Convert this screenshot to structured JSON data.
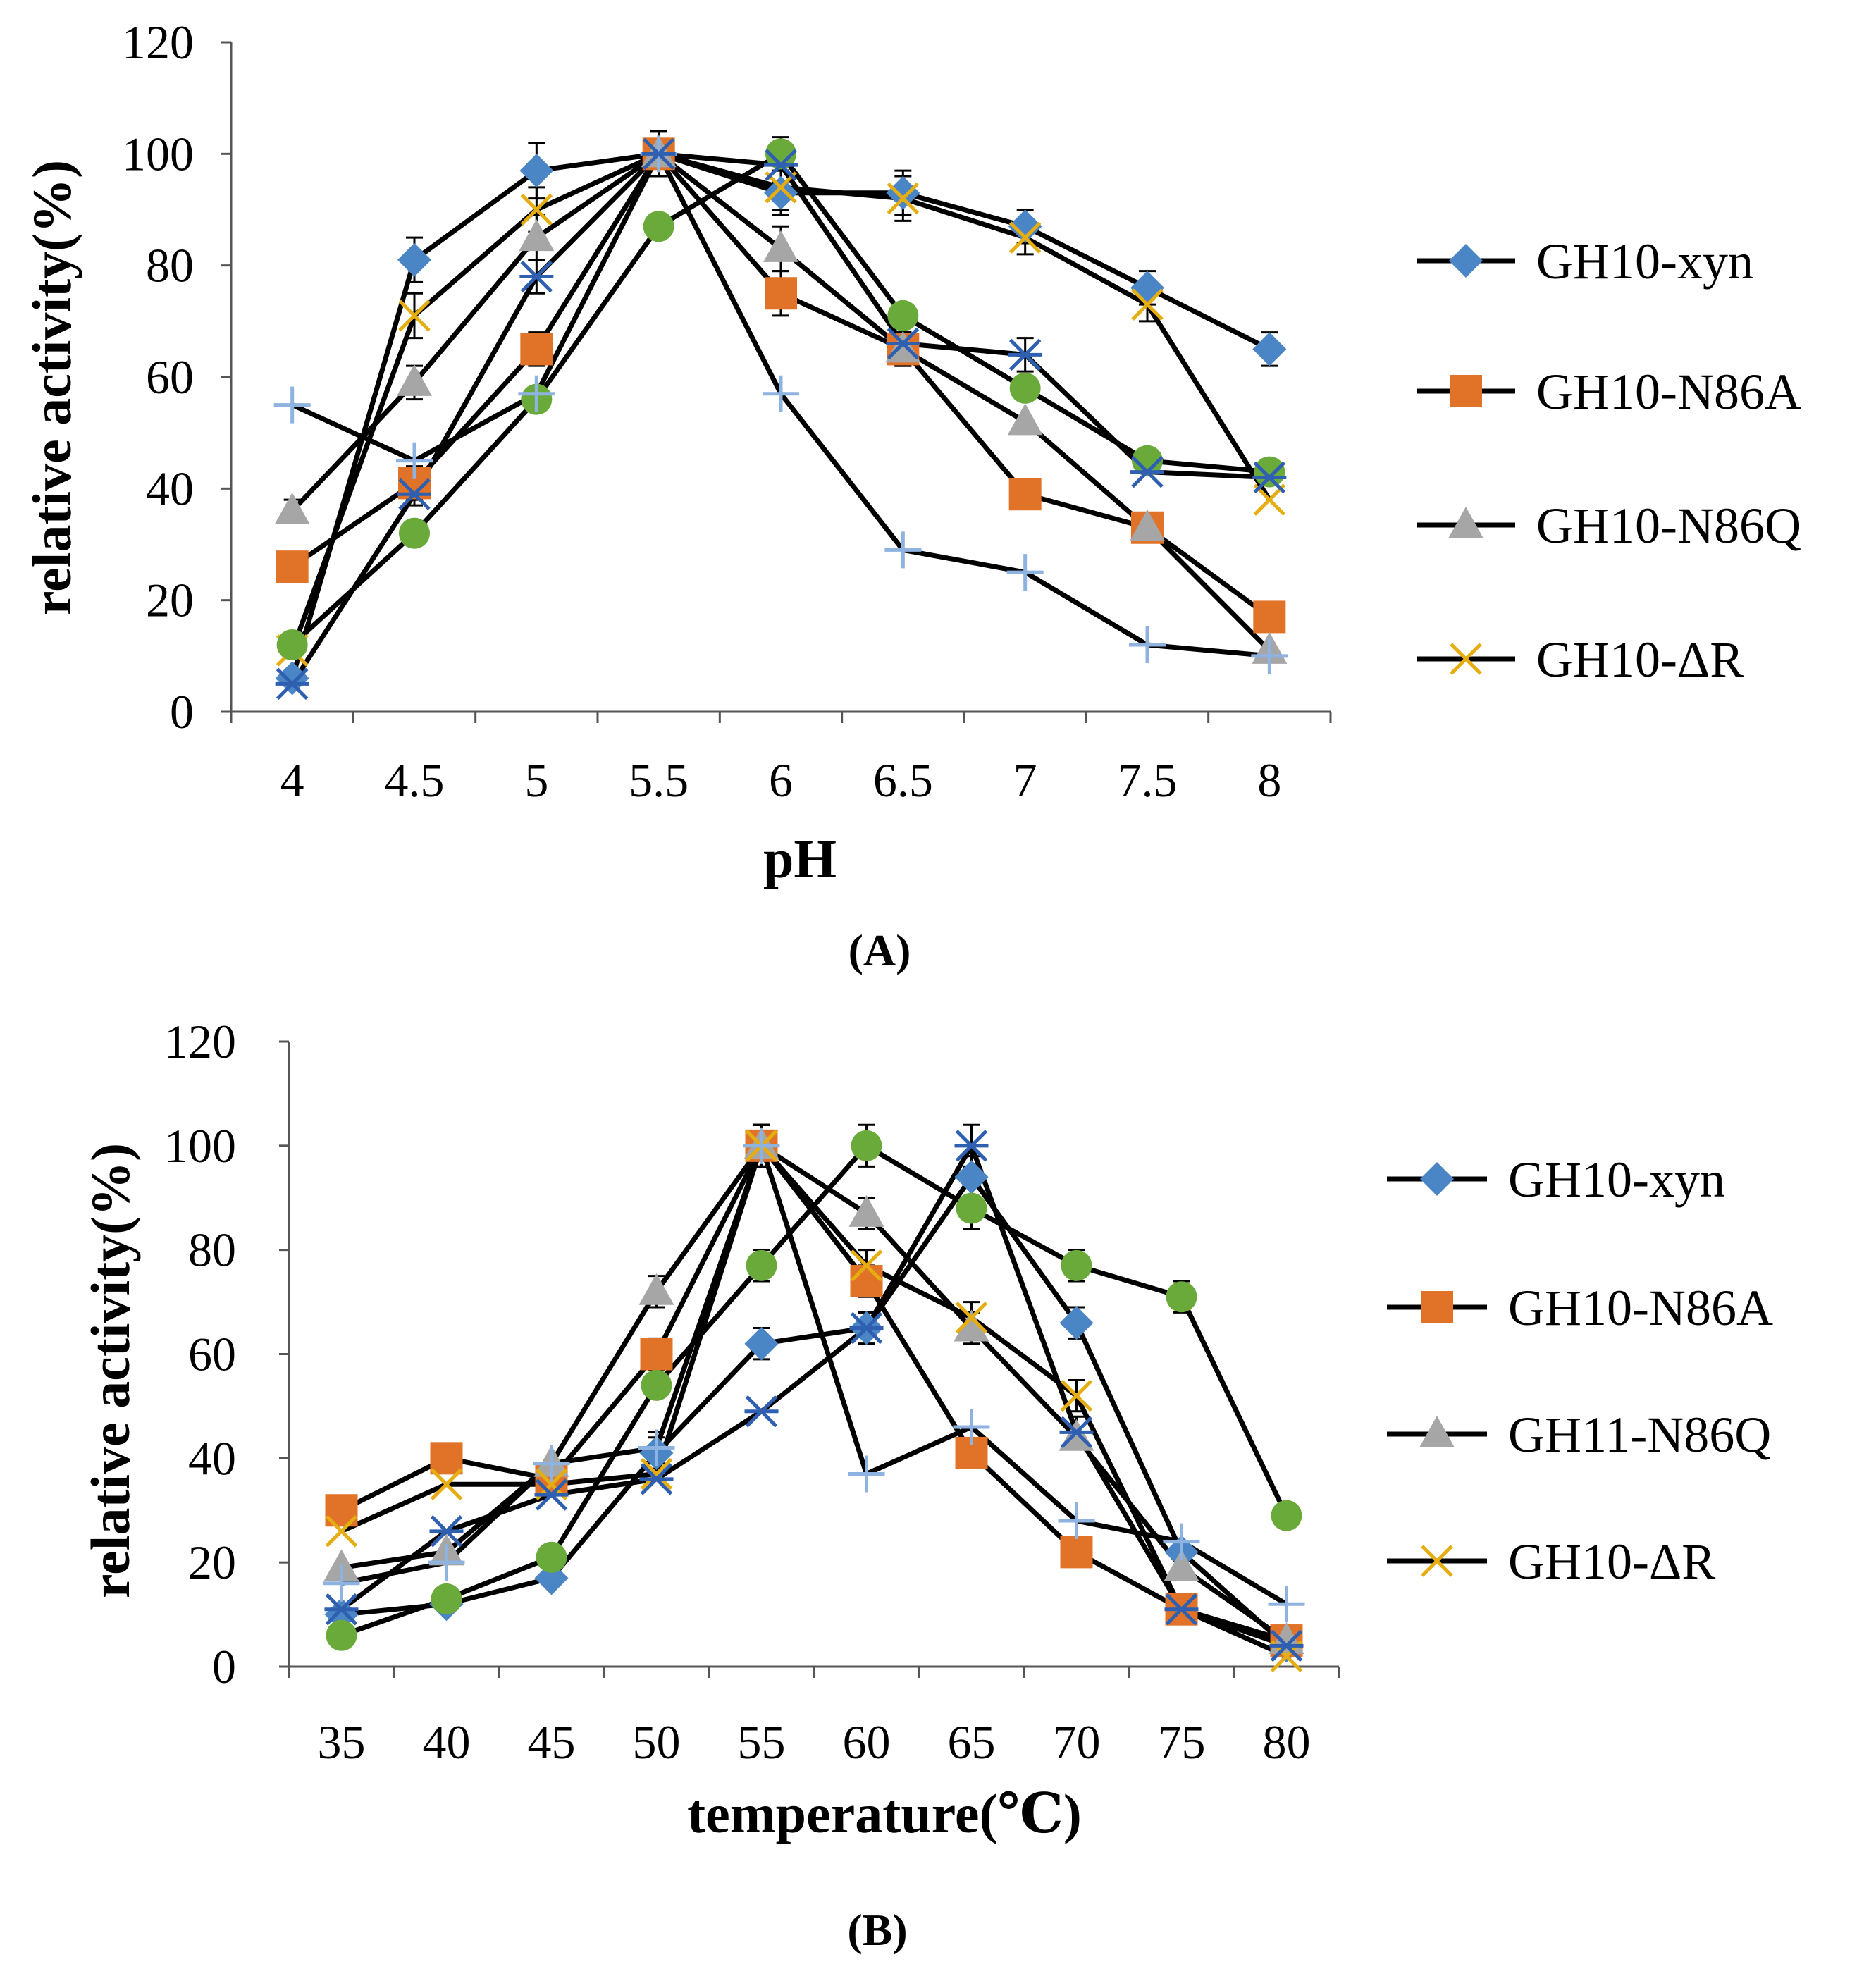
{
  "colors": {
    "xyn": "#4a86c5",
    "n86a": "#e07328",
    "n86q": "#a6a6a6",
    "dr": "#e6ad10",
    "green": "#6aaa3a",
    "lightblue": "#8fb3e0",
    "darkblue": "#2f5fb0",
    "line": "#000000"
  },
  "chart_data": [
    {
      "id": "A",
      "type": "line",
      "caption": "(A)",
      "xlabel": "pH",
      "ylabel": "relative activity(%)",
      "ylim": [
        0,
        120
      ],
      "yticks": [
        0,
        20,
        40,
        60,
        80,
        100,
        120
      ],
      "x": [
        4,
        4.5,
        5,
        5.5,
        6,
        6.5,
        7,
        7.5,
        8
      ],
      "x_labels": [
        "4",
        "4.5",
        "5",
        "5.5",
        "6",
        "6.5",
        "7",
        "7.5",
        "8"
      ],
      "series": [
        {
          "name": "GH10-xyn",
          "legend": true,
          "marker": "diamond",
          "color_key": "xyn",
          "values": [
            6,
            81,
            97,
            100,
            93,
            93,
            87,
            76,
            65
          ],
          "errors": [
            0,
            4,
            5,
            4,
            4,
            4,
            3,
            3,
            3
          ]
        },
        {
          "name": "GH10-N86A",
          "legend": true,
          "marker": "square",
          "color_key": "n86a",
          "values": [
            26,
            41,
            65,
            100,
            75,
            65,
            39,
            33,
            17
          ],
          "errors": [
            0,
            3,
            3,
            4,
            4,
            3,
            0,
            0,
            0
          ]
        },
        {
          "name": "GH10-N86Q",
          "legend": true,
          "marker": "triangle",
          "color_key": "n86q",
          "values": [
            36,
            59,
            85,
            100,
            83,
            65,
            52,
            33,
            11
          ],
          "errors": [
            2,
            3,
            4,
            4,
            4,
            3,
            0,
            0,
            0
          ]
        },
        {
          "name": "GH10-ΔR",
          "legend": true,
          "marker": "x",
          "color_key": "dr",
          "values": [
            11,
            71,
            90,
            100,
            94,
            92,
            85,
            73,
            38
          ],
          "errors": [
            0,
            4,
            4,
            4,
            4,
            4,
            3,
            3,
            0
          ]
        },
        {
          "name": "circle-series",
          "legend": false,
          "marker": "circle",
          "color_key": "green",
          "values": [
            12,
            32,
            56,
            87,
            100,
            71,
            58,
            45,
            43
          ],
          "errors": [
            0,
            0,
            0,
            0,
            3,
            0,
            0,
            0,
            0
          ]
        },
        {
          "name": "plus-series",
          "legend": false,
          "marker": "plus",
          "color_key": "lightblue",
          "values": [
            55,
            45,
            57,
            100,
            57,
            29,
            25,
            12,
            10
          ],
          "errors": [
            0,
            0,
            0,
            0,
            0,
            0,
            0,
            0,
            0
          ]
        },
        {
          "name": "star-series",
          "legend": false,
          "marker": "star",
          "color_key": "darkblue",
          "values": [
            5,
            39,
            78,
            100,
            98,
            66,
            64,
            43,
            42
          ],
          "errors": [
            0,
            2,
            3,
            4,
            3,
            3,
            3,
            0,
            0
          ]
        }
      ]
    },
    {
      "id": "B",
      "type": "line",
      "caption": "(B)",
      "xlabel": "temperature(℃)",
      "ylabel": "relative activity(%)",
      "ylim": [
        0,
        120
      ],
      "yticks": [
        0,
        20,
        40,
        60,
        80,
        100,
        120
      ],
      "x": [
        35,
        40,
        45,
        50,
        55,
        60,
        65,
        70,
        75,
        80
      ],
      "x_labels": [
        "35",
        "40",
        "45",
        "50",
        "55",
        "60",
        "65",
        "70",
        "75",
        "80"
      ],
      "series": [
        {
          "name": "GH10-xyn",
          "legend": true,
          "marker": "diamond",
          "color_key": "xyn",
          "values": [
            10,
            12,
            17,
            41,
            62,
            65,
            94,
            66,
            22,
            4
          ],
          "errors": [
            0,
            0,
            0,
            3,
            3,
            3,
            4,
            3,
            0,
            0
          ]
        },
        {
          "name": "GH10-N86A",
          "legend": true,
          "marker": "square",
          "color_key": "n86a",
          "values": [
            30,
            40,
            36,
            60,
            100,
            74,
            41,
            22,
            11,
            5
          ],
          "errors": [
            0,
            0,
            0,
            3,
            4,
            3,
            0,
            0,
            0,
            0
          ]
        },
        {
          "name": "GH11-N86Q",
          "legend": true,
          "marker": "triangle",
          "color_key": "n86q",
          "values": [
            19,
            22,
            39,
            72,
            100,
            87,
            65,
            44,
            19,
            5
          ],
          "errors": [
            0,
            0,
            0,
            3,
            4,
            3,
            3,
            0,
            0,
            0
          ]
        },
        {
          "name": "GH10-ΔR",
          "legend": true,
          "marker": "x",
          "color_key": "dr",
          "values": [
            26,
            35,
            35,
            37,
            100,
            77,
            67,
            52,
            11,
            2
          ],
          "errors": [
            0,
            0,
            0,
            0,
            4,
            3,
            3,
            3,
            0,
            0
          ]
        },
        {
          "name": "circle-series",
          "legend": false,
          "marker": "circle",
          "color_key": "green",
          "values": [
            6,
            13,
            21,
            54,
            77,
            100,
            88,
            77,
            71,
            29
          ],
          "errors": [
            0,
            0,
            0,
            0,
            3,
            4,
            4,
            3,
            3,
            0
          ]
        },
        {
          "name": "plus-series",
          "legend": false,
          "marker": "plus",
          "color_key": "lightblue",
          "values": [
            16,
            20,
            39,
            42,
            100,
            37,
            46,
            28,
            24,
            12
          ],
          "errors": [
            0,
            0,
            0,
            3,
            4,
            0,
            0,
            0,
            0,
            0
          ]
        },
        {
          "name": "star-series",
          "legend": false,
          "marker": "star",
          "color_key": "darkblue",
          "values": [
            11,
            26,
            33,
            36,
            49,
            65,
            100,
            45,
            11,
            4
          ],
          "errors": [
            0,
            0,
            0,
            0,
            0,
            3,
            4,
            3,
            0,
            0
          ]
        }
      ]
    }
  ]
}
